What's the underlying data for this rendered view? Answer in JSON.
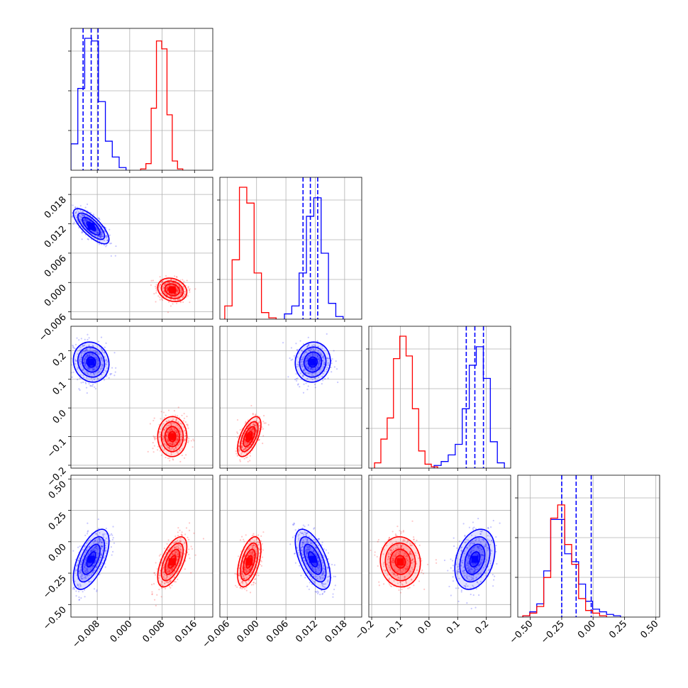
{
  "chart_data": {
    "type": "corner",
    "grid": true,
    "colors": {
      "series_a": "#0000ff",
      "series_b": "#ff0000"
    },
    "dimensions": 4,
    "axes": [
      {
        "range": [
          -0.0145,
          0.0205
        ],
        "ticks": [
          -0.008,
          0.0,
          0.008,
          0.016
        ],
        "tick_labels": [
          "−0.008",
          "0.000",
          "0.008",
          "0.016"
        ]
      },
      {
        "range": [
          -0.0075,
          0.0215
        ],
        "ticks": [
          -0.006,
          0.0,
          0.006,
          0.012,
          0.018
        ],
        "tick_labels": [
          "−0.006",
          "0.000",
          "0.006",
          "0.012",
          "0.018"
        ]
      },
      {
        "range": [
          -0.21,
          0.285
        ],
        "ticks": [
          -0.2,
          -0.1,
          0.0,
          0.1,
          0.2
        ],
        "tick_labels": [
          "−0.2",
          "−0.1",
          "0.0",
          "0.1",
          "0.2"
        ]
      },
      {
        "range": [
          -0.6,
          0.53
        ],
        "ticks": [
          -0.5,
          -0.25,
          0.0,
          0.25,
          0.5
        ],
        "tick_labels": [
          "−0.50",
          "−0.25",
          "0.00",
          "0.25",
          "0.50"
        ]
      }
    ],
    "series": [
      {
        "color": "#0000ff",
        "means": [
          -0.0095,
          0.0115,
          0.16,
          -0.14
        ],
        "sds": [
          0.0022,
          0.0018,
          0.035,
          0.12
        ],
        "correlations": {
          "0-1": -0.75,
          "0-2": -0.1,
          "0-3": 0.6,
          "1-2": 0.05,
          "1-3": -0.6,
          "2-3": 0.3
        },
        "quantiles_shown": true,
        "quantiles": [
          {
            "q16": -0.0115,
            "q50": -0.0095,
            "q84": -0.0078
          },
          {
            "q16": 0.0095,
            "q50": 0.011,
            "q84": 0.0125
          },
          {
            "q16": 0.13,
            "q50": 0.16,
            "q84": 0.19
          },
          {
            "q16": -0.25,
            "q50": -0.135,
            "q84": -0.015
          }
        ],
        "histograms": [
          {
            "bin_start": -0.0145,
            "bin_width": 0.0017,
            "counts": [
              0.2,
              0.62,
              1.0,
              0.98,
              0.52,
              0.22,
              0.1,
              0.02
            ]
          },
          {
            "bin_start": 0.0057,
            "bin_width": 0.0015,
            "counts": [
              0.04,
              0.1,
              0.35,
              0.78,
              0.92,
              0.5,
              0.12,
              0.02
            ]
          },
          {
            "bin_start": 0.018,
            "bin_width": 0.0245,
            "counts": [
              0.02,
              0.05,
              0.1,
              0.18,
              0.45,
              0.78,
              0.92,
              0.68,
              0.2,
              0.04
            ]
          },
          {
            "bin_start": -0.56,
            "bin_width": 0.0556,
            "counts": [
              0.01,
              0.04,
              0.1,
              0.35,
              0.74,
              0.74,
              0.48,
              0.42,
              0.25,
              0.12,
              0.06,
              0.04,
              0.02,
              0.01
            ]
          }
        ]
      },
      {
        "color": "#ff0000",
        "means": [
          0.0105,
          -0.0015,
          -0.1,
          -0.16
        ],
        "sds": [
          0.0018,
          0.0012,
          0.035,
          0.1
        ],
        "correlations": {
          "0-1": -0.2,
          "0-2": 0.0,
          "0-3": 0.6,
          "1-2": 0.6,
          "1-3": 0.5,
          "2-3": -0.05
        },
        "quantiles_shown": false,
        "histograms": [
          {
            "bin_start": 0.0027,
            "bin_width": 0.0013,
            "counts": [
              0.01,
              0.05,
              0.47,
              0.98,
              0.92,
              0.42,
              0.07,
              0.01
            ]
          },
          {
            "bin_start": -0.0065,
            "bin_width": 0.0015,
            "counts": [
              0.1,
              0.45,
              1.0,
              0.88,
              0.35,
              0.05,
              0.01
            ]
          },
          {
            "bin_start": -0.19,
            "bin_width": 0.022,
            "counts": [
              0.04,
              0.22,
              0.38,
              0.83,
              1.0,
              0.85,
              0.45,
              0.13,
              0.03,
              0.01
            ]
          },
          {
            "bin_start": -0.56,
            "bin_width": 0.0556,
            "counts": [
              0.01,
              0.03,
              0.08,
              0.3,
              0.75,
              0.85,
              0.55,
              0.4,
              0.14,
              0.05,
              0.03,
              0.01
            ]
          }
        ]
      }
    ]
  }
}
